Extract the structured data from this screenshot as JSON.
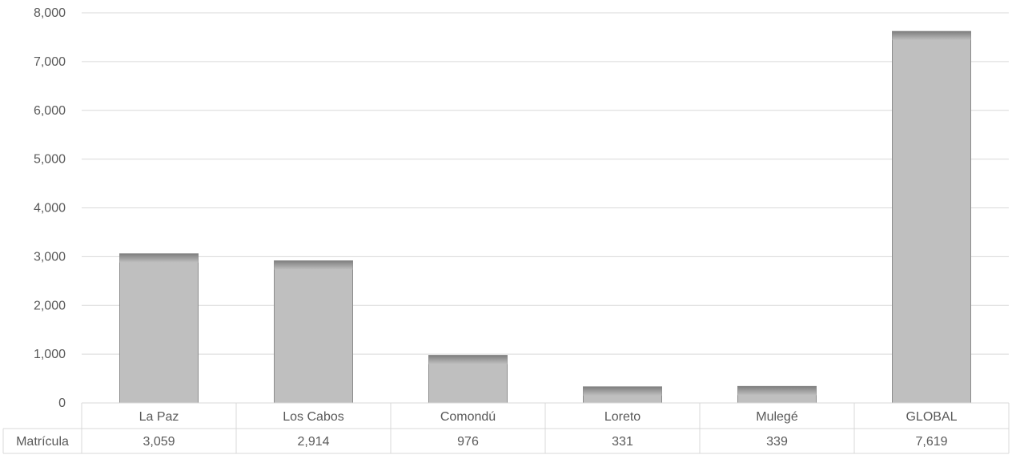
{
  "chart_data": {
    "type": "bar",
    "categories": [
      "La Paz",
      "Los Cabos",
      "Comondú",
      "Loreto",
      "Mulegé",
      "GLOBAL"
    ],
    "series": [
      {
        "name": "Matrícula",
        "values": [
          3059,
          2914,
          976,
          331,
          339,
          7619
        ],
        "value_labels": [
          "3,059",
          "2,914",
          "976",
          "331",
          "339",
          "7,619"
        ]
      }
    ],
    "ylim": [
      0,
      8000
    ],
    "y_ticks": [
      0,
      1000,
      2000,
      3000,
      4000,
      5000,
      6000,
      7000,
      8000
    ],
    "y_tick_labels": [
      "0",
      "1,000",
      "2,000",
      "3,000",
      "4,000",
      "5,000",
      "6,000",
      "7,000",
      "8,000"
    ],
    "grid": true,
    "legend": "data-table",
    "colors": {
      "bar_fill": "#bfbfbf",
      "bar_top": "#7f7f7f",
      "bar_stroke": "#8c8c8c",
      "grid": "#d9d9d9",
      "text": "#595959"
    }
  }
}
